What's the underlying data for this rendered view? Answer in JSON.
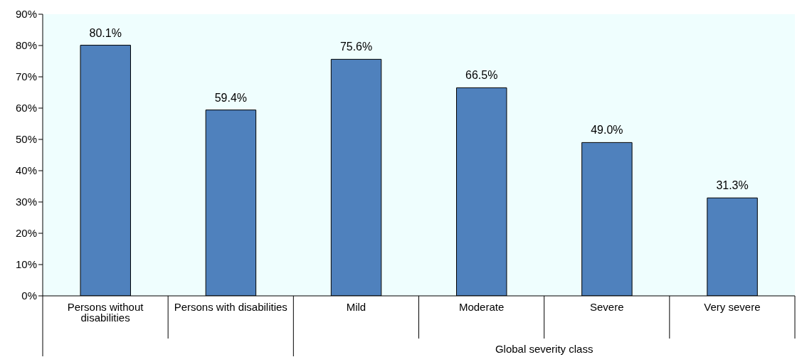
{
  "chart_data": {
    "type": "bar",
    "categories": [
      "Persons without disabilities",
      "Persons with disabilities",
      "Mild",
      "Moderate",
      "Severe",
      "Very severe"
    ],
    "values": [
      80.1,
      59.4,
      75.6,
      66.5,
      49.0,
      31.3
    ],
    "value_labels": [
      "80.1%",
      "59.4%",
      "75.6%",
      "66.5%",
      "49.0%",
      "31.3%"
    ],
    "color": "#4f81bd",
    "ylim": [
      0,
      90
    ],
    "yticks": [
      {
        "value": 0,
        "label": "0%"
      },
      {
        "value": 10,
        "label": "10%"
      },
      {
        "value": 20,
        "label": "20%"
      },
      {
        "value": 30,
        "label": "30%"
      },
      {
        "value": 40,
        "label": "40%"
      },
      {
        "value": 50,
        "label": "50%"
      },
      {
        "value": 60,
        "label": "60%"
      },
      {
        "value": 70,
        "label": "70%"
      },
      {
        "value": 80,
        "label": "80%"
      },
      {
        "value": 90,
        "label": "90%"
      }
    ],
    "annotations": [
      "Global severity class"
    ]
  }
}
